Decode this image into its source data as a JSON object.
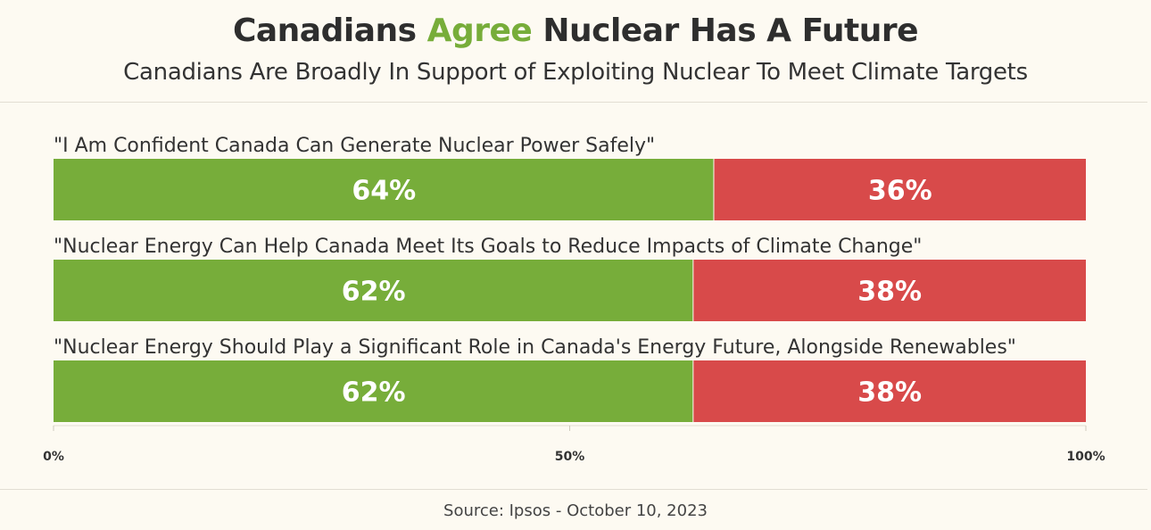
{
  "header": {
    "title_part1": "Canadians ",
    "title_accent": "Agree",
    "title_part2": " Nuclear Has A Future",
    "subtitle": "Canadians Are Broadly In Support of Exploiting Nuclear To Meet Climate Targets"
  },
  "source": "Source: Ipsos - October 10, 2023",
  "colors": {
    "agree": "#77ad3a",
    "disagree": "#d84a4a",
    "accent": "#77ad3a"
  },
  "chart_data": {
    "type": "bar",
    "orientation": "horizontal",
    "stacked": true,
    "categories": [
      "\"I Am Confident Canada Can Generate Nuclear Power Safely\"",
      "\"Nuclear Energy Can Help Canada Meet Its Goals to Reduce Impacts of Climate Change\"",
      "\"Nuclear Energy Should Play a Significant Role in Canada's Energy Future, Alongside Renewables\""
    ],
    "series": [
      {
        "values": [
          64,
          62,
          62
        ],
        "labels": [
          "64%",
          "62%",
          "62%"
        ]
      },
      {
        "values": [
          36,
          38,
          38
        ],
        "labels": [
          "36%",
          "38%",
          "38%"
        ]
      }
    ],
    "xlim": [
      0,
      100
    ],
    "xticks": [
      "0%",
      "50%",
      "100%"
    ],
    "grid": false,
    "legend": "none"
  }
}
